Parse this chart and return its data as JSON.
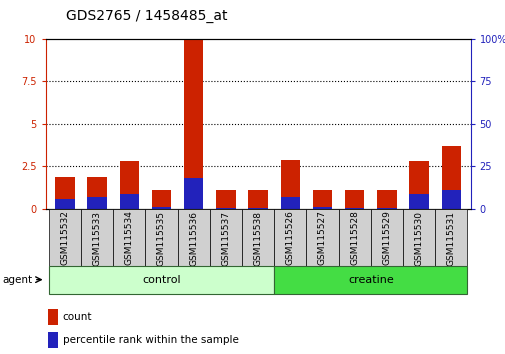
{
  "title": "GDS2765 / 1458485_at",
  "samples": [
    "GSM115532",
    "GSM115533",
    "GSM115534",
    "GSM115535",
    "GSM115536",
    "GSM115537",
    "GSM115538",
    "GSM115526",
    "GSM115527",
    "GSM115528",
    "GSM115529",
    "GSM115530",
    "GSM115531"
  ],
  "count_values": [
    1.9,
    1.9,
    2.8,
    1.1,
    10.0,
    1.1,
    1.1,
    2.9,
    1.1,
    1.1,
    1.1,
    2.8,
    3.7
  ],
  "percentile_values": [
    6.0,
    7.0,
    9.0,
    1.0,
    18.0,
    0.5,
    0.5,
    7.0,
    1.0,
    0.5,
    0.5,
    9.0,
    11.0
  ],
  "groups": [
    {
      "label": "control",
      "start": 0,
      "end": 6,
      "color": "#ccffcc"
    },
    {
      "label": "creatine",
      "start": 7,
      "end": 12,
      "color": "#44dd44"
    }
  ],
  "group_label": "agent",
  "left_ylim": [
    0,
    10
  ],
  "right_ylim": [
    0,
    100
  ],
  "left_yticks": [
    0,
    2.5,
    5,
    7.5,
    10
  ],
  "right_yticks": [
    0,
    25,
    50,
    75,
    100
  ],
  "left_yticklabels": [
    "0",
    "2.5",
    "5",
    "7.5",
    "10"
  ],
  "right_yticklabels": [
    "0",
    "25",
    "50",
    "75",
    "100%"
  ],
  "bar_color_count": "#cc2200",
  "bar_color_pct": "#2222bb",
  "bar_width": 0.6,
  "legend_count_label": "count",
  "legend_pct_label": "percentile rank within the sample",
  "title_fontsize": 10,
  "tick_fontsize": 7,
  "label_fontsize": 6.5,
  "grid_color": "black",
  "grid_linestyle": "dotted",
  "grid_linewidth": 0.8,
  "background_color": "#ffffff",
  "tick_bg_color": "#d0d0d0"
}
